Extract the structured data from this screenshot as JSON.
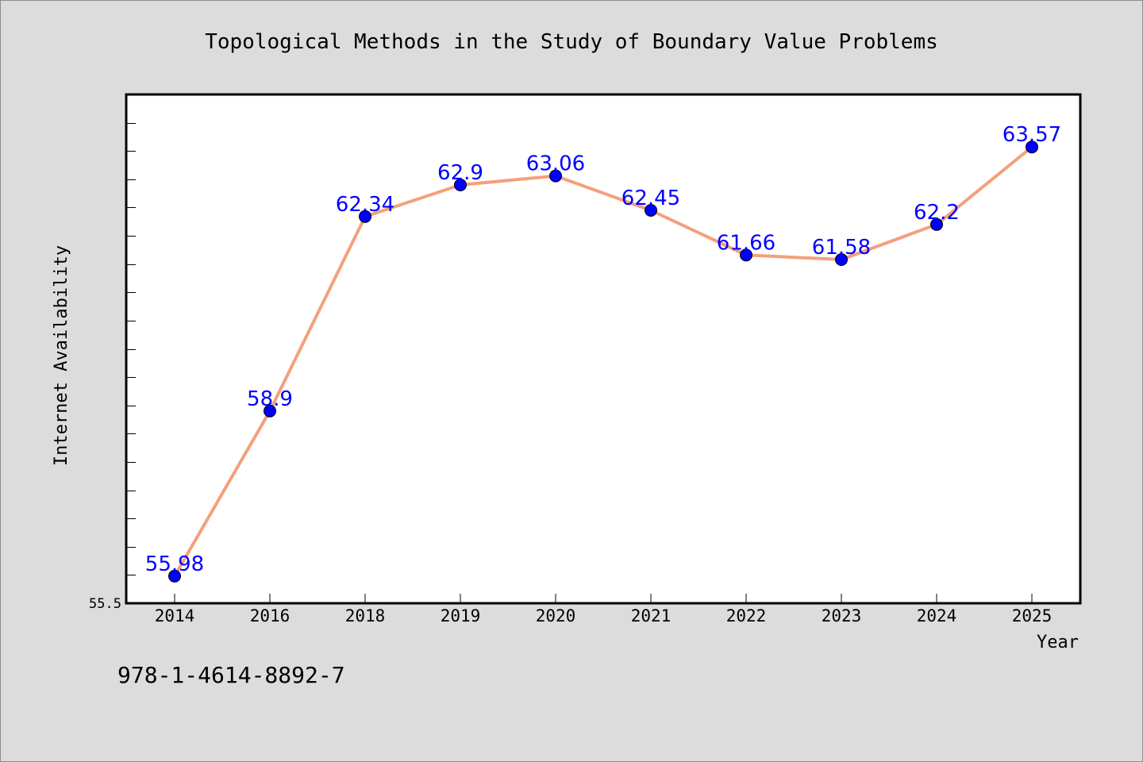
{
  "chart_data": {
    "type": "line",
    "title": "Topological Methods in the Study of Boundary Value Problems",
    "xlabel": "Year",
    "ylabel": "Internet Availability",
    "categories": [
      "2014",
      "2016",
      "2018",
      "2019",
      "2020",
      "2021",
      "2022",
      "2023",
      "2024",
      "2025"
    ],
    "series": [
      {
        "values": [
          55.98,
          58.9,
          62.34,
          62.9,
          63.06,
          62.45,
          61.66,
          61.58,
          62.2,
          63.57
        ]
      }
    ],
    "data_labels": [
      "55.98",
      "58.9",
      "62.34",
      "62.9",
      "63.06",
      "62.45",
      "61.66",
      "61.58",
      "62.2",
      "63.57"
    ],
    "ytick_labels": [
      "55.5"
    ],
    "ylim": [
      55.5,
      64.5
    ],
    "grid": false,
    "legend": "none",
    "colors": {
      "line": "#f4a07c",
      "marker": "#0000ff",
      "data_label": "#0000ff",
      "plot_background": "#ffffff",
      "page_background": "#dcdcdc"
    }
  },
  "footer": {
    "isbn": "978-1-4614-8892-7"
  }
}
